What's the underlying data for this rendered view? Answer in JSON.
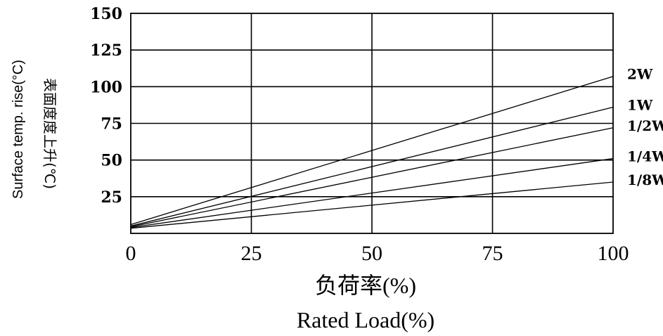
{
  "chart_data": {
    "type": "line",
    "title": "",
    "xlabel_cn": "负荷率(%)",
    "xlabel": "Rated Load(%)",
    "ylabel_en": "Surface temp. rise(°C)",
    "ylabel_cn": "表面度度上升(℃)",
    "xlim": [
      0,
      100
    ],
    "ylim": [
      0,
      150
    ],
    "x_ticks": [
      0,
      25,
      50,
      75,
      100
    ],
    "y_ticks": [
      25,
      50,
      75,
      100,
      125,
      150
    ],
    "grid": true,
    "legend": "labels at right end of each line",
    "series": [
      {
        "name": "2W",
        "x": [
          0,
          100
        ],
        "y": [
          6,
          107
        ]
      },
      {
        "name": "1W",
        "x": [
          0,
          100
        ],
        "y": [
          5,
          86
        ]
      },
      {
        "name": "1/2W",
        "x": [
          0,
          100
        ],
        "y": [
          4.5,
          72
        ]
      },
      {
        "name": "1/4W",
        "x": [
          0,
          100
        ],
        "y": [
          4,
          51
        ]
      },
      {
        "name": "1/8W",
        "x": [
          0,
          100
        ],
        "y": [
          3.5,
          35
        ]
      }
    ]
  }
}
